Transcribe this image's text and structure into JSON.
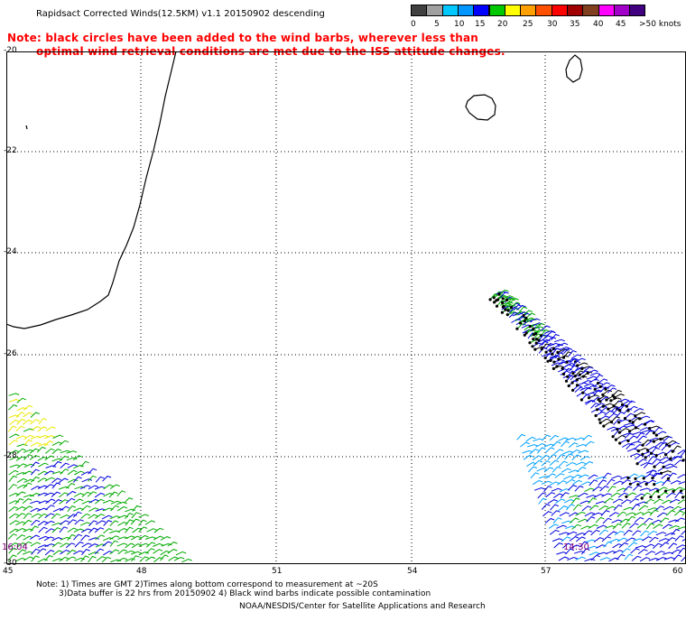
{
  "header": {
    "title": "Rapidsact Corrected Winds(12.5KM) v1.1 20150902 descending",
    "note_line1": "Note: black circles have been added to the wind barbs, wherever less than",
    "note_line2": "optimal wind retrieval conditions are met due to the ISS attitude changes."
  },
  "legend": {
    "unit": "knots",
    "ticks": [
      "0",
      "5",
      "10",
      "15",
      "20",
      "25",
      "30",
      "35",
      "40",
      "45",
      ">50 knots"
    ],
    "colors": [
      "#404040",
      "#a0a0a0",
      "#00c8ff",
      "#0096ff",
      "#0000ff",
      "#00c800",
      "#ffff00",
      "#ffa000",
      "#ff5000",
      "#ff0000",
      "#a00000",
      "#804020",
      "#ff00ff",
      "#a000c8",
      "#400080"
    ]
  },
  "map": {
    "lat_labels": [
      "-20",
      "-22",
      "-24",
      "-26",
      "-28",
      "-30"
    ],
    "lon_labels": [
      "45",
      "48",
      "51",
      "54",
      "57",
      "60"
    ],
    "time_labels": {
      "west": "16:04",
      "east": "14:30"
    },
    "colors": {
      "coast": "#000000",
      "grid": "#000000",
      "barb_green": "#00aa00",
      "barb_blue": "#0000dd",
      "barb_cyan": "#00a0ff",
      "barb_yellow": "#e8e800",
      "barb_black": "#000000"
    }
  },
  "footer": {
    "note1": "Note: 1) Times are GMT 2)Times along bottom correspond to measurement at ~20S",
    "note2": "3)Data buffer is 22 hrs from 20150902 4) Black wind barbs indicate possible contamination",
    "credit": "NOAA/NESDIS/Center for Satellite Applications and Research"
  }
}
